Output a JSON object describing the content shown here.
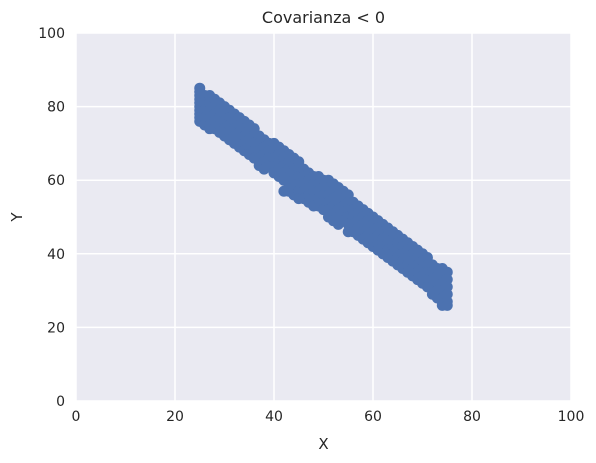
{
  "chart_data": {
    "type": "scatter",
    "title": "Covarianza < 0",
    "xlabel": "X",
    "ylabel": "Y",
    "xlim": [
      0,
      100
    ],
    "ylim": [
      0,
      100
    ],
    "xticks": [
      "0",
      "20",
      "40",
      "60",
      "80",
      "100"
    ],
    "yticks": [
      "0",
      "20",
      "40",
      "60",
      "80",
      "100"
    ],
    "grid": true,
    "colors": {
      "background": "#eaeaf2",
      "grid": "#ffffff",
      "marker": "#4c72b0"
    },
    "series": [
      {
        "points": [
          [
            25,
            85
          ],
          [
            25,
            84
          ],
          [
            25,
            83
          ],
          [
            25,
            82
          ],
          [
            25,
            81
          ],
          [
            25,
            80
          ],
          [
            25,
            79
          ],
          [
            25,
            78
          ],
          [
            25,
            77
          ],
          [
            25,
            76
          ],
          [
            26,
            83
          ],
          [
            26,
            81
          ],
          [
            26,
            79
          ],
          [
            26,
            77
          ],
          [
            26,
            75
          ],
          [
            27,
            83
          ],
          [
            27,
            81
          ],
          [
            27,
            79
          ],
          [
            27,
            77
          ],
          [
            27,
            75
          ],
          [
            27,
            74
          ],
          [
            28,
            82
          ],
          [
            28,
            80
          ],
          [
            28,
            78
          ],
          [
            28,
            76
          ],
          [
            28,
            74
          ],
          [
            29,
            81
          ],
          [
            29,
            79
          ],
          [
            29,
            77
          ],
          [
            29,
            75
          ],
          [
            29,
            73
          ],
          [
            30,
            80
          ],
          [
            30,
            78
          ],
          [
            30,
            76
          ],
          [
            30,
            74
          ],
          [
            30,
            72
          ],
          [
            31,
            79
          ],
          [
            31,
            77
          ],
          [
            31,
            75
          ],
          [
            31,
            73
          ],
          [
            31,
            71
          ],
          [
            32,
            78
          ],
          [
            32,
            76
          ],
          [
            32,
            74
          ],
          [
            32,
            72
          ],
          [
            32,
            70
          ],
          [
            33,
            77
          ],
          [
            33,
            75
          ],
          [
            33,
            73
          ],
          [
            33,
            71
          ],
          [
            33,
            69
          ],
          [
            34,
            76
          ],
          [
            34,
            74
          ],
          [
            34,
            72
          ],
          [
            34,
            70
          ],
          [
            34,
            68
          ],
          [
            35,
            75
          ],
          [
            35,
            73
          ],
          [
            35,
            71
          ],
          [
            35,
            69
          ],
          [
            35,
            67
          ],
          [
            36,
            74
          ],
          [
            36,
            72
          ],
          [
            36,
            70
          ],
          [
            36,
            68
          ],
          [
            36,
            66
          ],
          [
            37,
            72
          ],
          [
            37,
            70
          ],
          [
            37,
            68
          ],
          [
            37,
            66
          ],
          [
            37,
            64
          ],
          [
            38,
            71
          ],
          [
            38,
            69
          ],
          [
            38,
            67
          ],
          [
            38,
            65
          ],
          [
            38,
            63
          ],
          [
            39,
            70
          ],
          [
            39,
            68
          ],
          [
            39,
            66
          ],
          [
            39,
            64
          ],
          [
            40,
            70
          ],
          [
            40,
            68
          ],
          [
            40,
            66
          ],
          [
            40,
            64
          ],
          [
            40,
            62
          ],
          [
            41,
            69
          ],
          [
            41,
            67
          ],
          [
            41,
            65
          ],
          [
            41,
            63
          ],
          [
            41,
            61
          ],
          [
            42,
            68
          ],
          [
            42,
            66
          ],
          [
            42,
            64
          ],
          [
            42,
            62
          ],
          [
            42,
            60
          ],
          [
            42,
            57
          ],
          [
            43,
            67
          ],
          [
            43,
            65
          ],
          [
            43,
            63
          ],
          [
            43,
            61
          ],
          [
            43,
            59
          ],
          [
            43,
            57
          ],
          [
            44,
            66
          ],
          [
            44,
            64
          ],
          [
            44,
            62
          ],
          [
            44,
            60
          ],
          [
            44,
            58
          ],
          [
            44,
            56
          ],
          [
            45,
            65
          ],
          [
            45,
            63
          ],
          [
            45,
            61
          ],
          [
            45,
            59
          ],
          [
            45,
            57
          ],
          [
            45,
            55
          ],
          [
            46,
            63
          ],
          [
            46,
            61
          ],
          [
            46,
            59
          ],
          [
            46,
            57
          ],
          [
            46,
            55
          ],
          [
            47,
            62
          ],
          [
            47,
            60
          ],
          [
            47,
            58
          ],
          [
            47,
            56
          ],
          [
            47,
            54
          ],
          [
            48,
            61
          ],
          [
            48,
            59
          ],
          [
            48,
            57
          ],
          [
            48,
            55
          ],
          [
            48,
            53
          ],
          [
            49,
            61
          ],
          [
            49,
            59
          ],
          [
            49,
            57
          ],
          [
            49,
            55
          ],
          [
            49,
            53
          ],
          [
            50,
            60
          ],
          [
            50,
            58
          ],
          [
            50,
            56
          ],
          [
            50,
            54
          ],
          [
            50,
            52
          ],
          [
            51,
            60
          ],
          [
            51,
            58
          ],
          [
            51,
            56
          ],
          [
            51,
            54
          ],
          [
            51,
            52
          ],
          [
            51,
            50
          ],
          [
            52,
            59
          ],
          [
            52,
            57
          ],
          [
            52,
            55
          ],
          [
            52,
            53
          ],
          [
            52,
            51
          ],
          [
            52,
            49
          ],
          [
            53,
            58
          ],
          [
            53,
            56
          ],
          [
            53,
            54
          ],
          [
            53,
            52
          ],
          [
            53,
            50
          ],
          [
            53,
            48
          ],
          [
            54,
            57
          ],
          [
            54,
            55
          ],
          [
            54,
            53
          ],
          [
            54,
            51
          ],
          [
            54,
            49
          ],
          [
            55,
            56
          ],
          [
            55,
            54
          ],
          [
            55,
            52
          ],
          [
            55,
            50
          ],
          [
            55,
            48
          ],
          [
            55,
            46
          ],
          [
            56,
            54
          ],
          [
            56,
            52
          ],
          [
            56,
            50
          ],
          [
            56,
            48
          ],
          [
            56,
            46
          ],
          [
            57,
            53
          ],
          [
            57,
            51
          ],
          [
            57,
            49
          ],
          [
            57,
            47
          ],
          [
            57,
            45
          ],
          [
            58,
            52
          ],
          [
            58,
            50
          ],
          [
            58,
            48
          ],
          [
            58,
            46
          ],
          [
            58,
            44
          ],
          [
            59,
            51
          ],
          [
            59,
            49
          ],
          [
            59,
            47
          ],
          [
            59,
            45
          ],
          [
            59,
            43
          ],
          [
            60,
            50
          ],
          [
            60,
            48
          ],
          [
            60,
            46
          ],
          [
            60,
            44
          ],
          [
            60,
            42
          ],
          [
            61,
            49
          ],
          [
            61,
            47
          ],
          [
            61,
            45
          ],
          [
            61,
            43
          ],
          [
            61,
            41
          ],
          [
            62,
            48
          ],
          [
            62,
            46
          ],
          [
            62,
            44
          ],
          [
            62,
            42
          ],
          [
            62,
            40
          ],
          [
            63,
            47
          ],
          [
            63,
            45
          ],
          [
            63,
            43
          ],
          [
            63,
            41
          ],
          [
            63,
            39
          ],
          [
            64,
            46
          ],
          [
            64,
            44
          ],
          [
            64,
            42
          ],
          [
            64,
            40
          ],
          [
            64,
            38
          ],
          [
            65,
            45
          ],
          [
            65,
            43
          ],
          [
            65,
            41
          ],
          [
            65,
            39
          ],
          [
            65,
            37
          ],
          [
            66,
            44
          ],
          [
            66,
            42
          ],
          [
            66,
            40
          ],
          [
            66,
            38
          ],
          [
            66,
            36
          ],
          [
            67,
            43
          ],
          [
            67,
            41
          ],
          [
            67,
            39
          ],
          [
            67,
            37
          ],
          [
            67,
            35
          ],
          [
            68,
            42
          ],
          [
            68,
            40
          ],
          [
            68,
            38
          ],
          [
            68,
            36
          ],
          [
            68,
            34
          ],
          [
            69,
            41
          ],
          [
            69,
            39
          ],
          [
            69,
            37
          ],
          [
            69,
            35
          ],
          [
            69,
            33
          ],
          [
            70,
            40
          ],
          [
            70,
            38
          ],
          [
            70,
            36
          ],
          [
            70,
            34
          ],
          [
            70,
            32
          ],
          [
            71,
            39
          ],
          [
            71,
            37
          ],
          [
            71,
            35
          ],
          [
            71,
            33
          ],
          [
            71,
            31
          ],
          [
            72,
            37
          ],
          [
            72,
            35
          ],
          [
            72,
            33
          ],
          [
            72,
            31
          ],
          [
            72,
            29
          ],
          [
            73,
            36
          ],
          [
            73,
            34
          ],
          [
            73,
            32
          ],
          [
            73,
            30
          ],
          [
            73,
            28
          ],
          [
            74,
            36
          ],
          [
            74,
            34
          ],
          [
            74,
            32
          ],
          [
            74,
            30
          ],
          [
            74,
            28
          ],
          [
            74,
            26
          ],
          [
            75,
            35
          ],
          [
            75,
            33
          ],
          [
            75,
            31
          ],
          [
            75,
            29
          ],
          [
            75,
            27
          ],
          [
            75,
            26
          ]
        ]
      }
    ]
  }
}
